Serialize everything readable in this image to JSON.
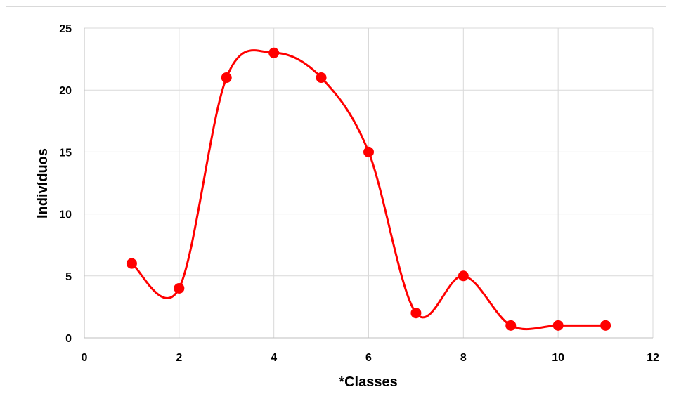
{
  "chart_data": {
    "type": "line",
    "smooth": true,
    "title": "",
    "xlabel": "*Classes",
    "ylabel": "Indivíduos",
    "xlim": [
      0,
      12
    ],
    "ylim": [
      0,
      25
    ],
    "x_ticks": [
      0,
      2,
      4,
      6,
      8,
      10,
      12
    ],
    "y_ticks": [
      0,
      5,
      10,
      15,
      20,
      25
    ],
    "grid": true,
    "legend": "none",
    "series": [
      {
        "color": "#ff0000",
        "marker": "circle",
        "x": [
          1,
          2,
          3,
          4,
          5,
          6,
          7,
          8,
          9,
          10,
          11
        ],
        "y": [
          6,
          4,
          21,
          23,
          21,
          15,
          2,
          5,
          1,
          1,
          1
        ]
      }
    ]
  }
}
